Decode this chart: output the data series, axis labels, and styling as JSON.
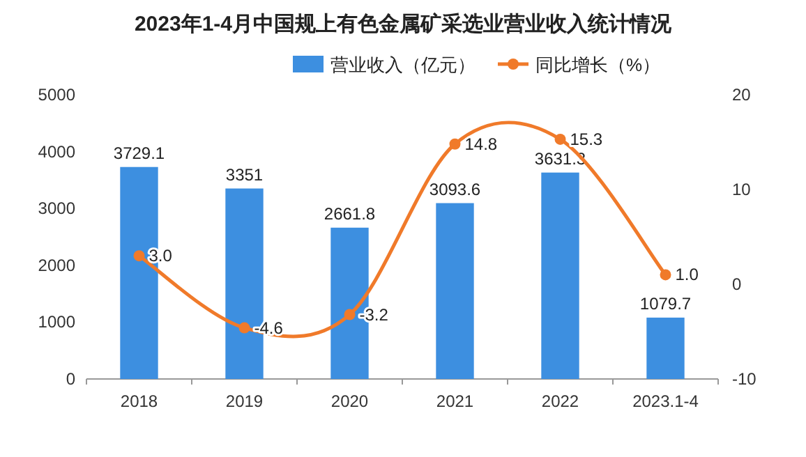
{
  "chart_data": {
    "type": "bar",
    "title": "2023年1-4月中国规上有色金属矿采选业营业收入统计情况",
    "categories": [
      "2018",
      "2019",
      "2020",
      "2021",
      "2022",
      "2023.1-4"
    ],
    "series": [
      {
        "name": "营业收入（亿元）",
        "color": "#3d8fe0",
        "values": [
          3729.1,
          3351,
          2661.8,
          3093.6,
          3631.3,
          1079.7
        ]
      },
      {
        "name": "同比增长（%）",
        "type": "line",
        "axis": "y2",
        "color": "#f07a2a",
        "values": [
          3.0,
          -4.6,
          -3.2,
          14.8,
          15.3,
          1.0
        ],
        "value_labels": [
          "3.0",
          "-4.6",
          "-3.2",
          "14.8",
          "15.3",
          "1.0"
        ]
      }
    ],
    "ylim": [
      0,
      5000
    ],
    "yticks": [
      0,
      1000,
      2000,
      3000,
      4000,
      5000
    ],
    "y2lim": [
      -10,
      20
    ],
    "y2ticks": [
      -10,
      0,
      10,
      20
    ],
    "legend": "top",
    "data_labels": true,
    "marker": "circle"
  }
}
